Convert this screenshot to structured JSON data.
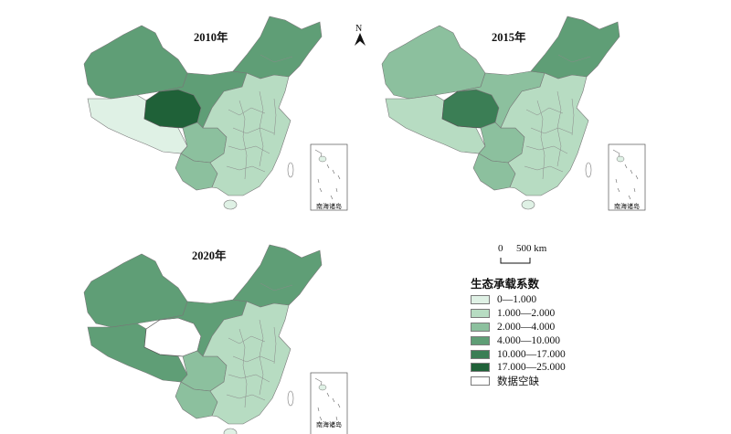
{
  "north": "N",
  "scale_bar": {
    "start": "0",
    "end": "500 km"
  },
  "inset_label": "南海诸岛",
  "maps": [
    {
      "title": "2010年",
      "classes": {
        "northwest": 3,
        "tibet": 0,
        "qinghai": 5,
        "gansu": 3,
        "sichuan": 2,
        "yunnan": 2,
        "northeast": 3,
        "east": 1
      }
    },
    {
      "title": "2015年",
      "classes": {
        "northwest": 2,
        "tibet": 1,
        "qinghai": 4,
        "gansu": 2,
        "sichuan": 2,
        "yunnan": 2,
        "northeast": 3,
        "east": 1
      }
    },
    {
      "title": "2020年",
      "classes": {
        "northwest": 3,
        "tibet": 3,
        "qinghai": 6,
        "gansu": 3,
        "sichuan": 2,
        "yunnan": 2,
        "northeast": 3,
        "east": 1
      }
    }
  ],
  "legend": {
    "title": "生态承载系数",
    "items": [
      {
        "label": "0—1.000",
        "color": "#dff1e5"
      },
      {
        "label": "1.000—2.000",
        "color": "#b7dcc2"
      },
      {
        "label": "2.000—4.000",
        "color": "#8cc09e"
      },
      {
        "label": "4.000—10.000",
        "color": "#5f9e76"
      },
      {
        "label": "10.000—17.000",
        "color": "#3b7e55"
      },
      {
        "label": "17.000—25.000",
        "color": "#1f6138"
      },
      {
        "label": "数据空缺",
        "color": "#ffffff"
      }
    ]
  }
}
